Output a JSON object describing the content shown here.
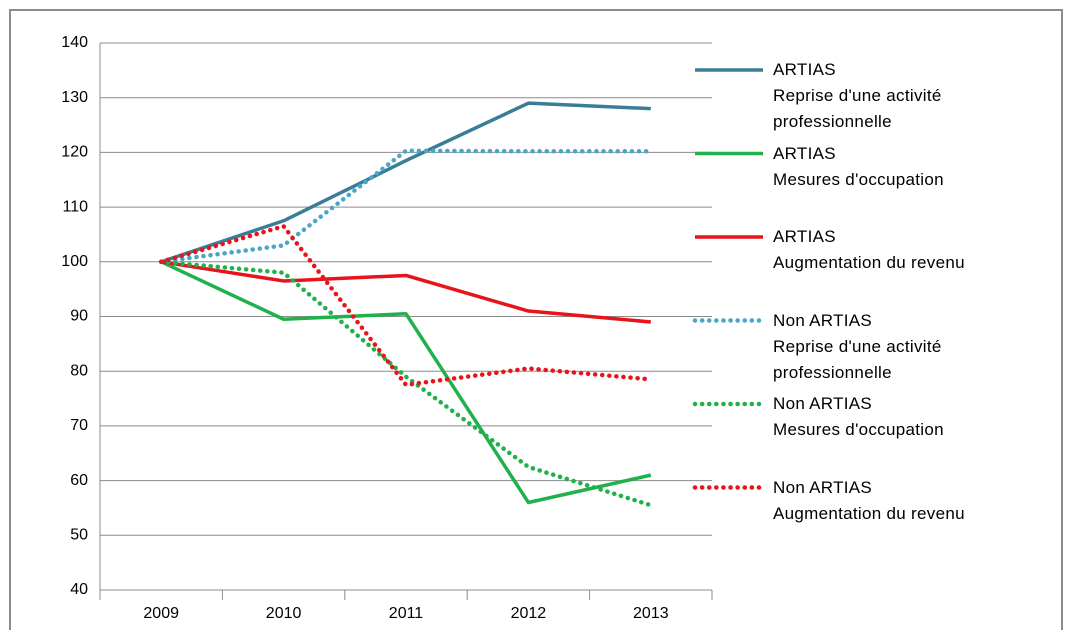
{
  "chart_data": {
    "type": "line",
    "categories": [
      "2009",
      "2010",
      "2011",
      "2012",
      "2013"
    ],
    "ylim": [
      40,
      140
    ],
    "yticks": [
      40,
      50,
      60,
      70,
      80,
      90,
      100,
      110,
      120,
      130,
      140
    ],
    "grid": true,
    "series": [
      {
        "name": "ARTIAS\nReprise d'une activité\nprofessionnelle",
        "color": "#3a7d97",
        "style": "solid",
        "values": [
          100,
          107.5,
          118.5,
          129,
          128
        ]
      },
      {
        "name": "ARTIAS\nMesures d'occupation",
        "color": "#20b14c",
        "style": "solid",
        "values": [
          100,
          89.5,
          90.5,
          56,
          61
        ]
      },
      {
        "name": "ARTIAS\nAugmentation du revenu",
        "color": "#e8141b",
        "style": "solid",
        "values": [
          100,
          96.5,
          97.5,
          91,
          89
        ]
      },
      {
        "name": "Non ARTIAS\nReprise d'une activité\nprofessionnelle",
        "color": "#4ba6c6",
        "style": "dotted",
        "values": [
          100,
          103,
          120.3,
          120.2,
          120.2
        ]
      },
      {
        "name": "Non ARTIAS\nMesures d'occupation",
        "color": "#20b14c",
        "style": "dotted",
        "values": [
          100,
          98,
          79,
          62.5,
          55.5
        ]
      },
      {
        "name": "Non ARTIAS\nAugmentation du revenu",
        "color": "#e8141b",
        "style": "dotted",
        "values": [
          100,
          106.5,
          77.5,
          80.5,
          78.5
        ]
      }
    ]
  }
}
